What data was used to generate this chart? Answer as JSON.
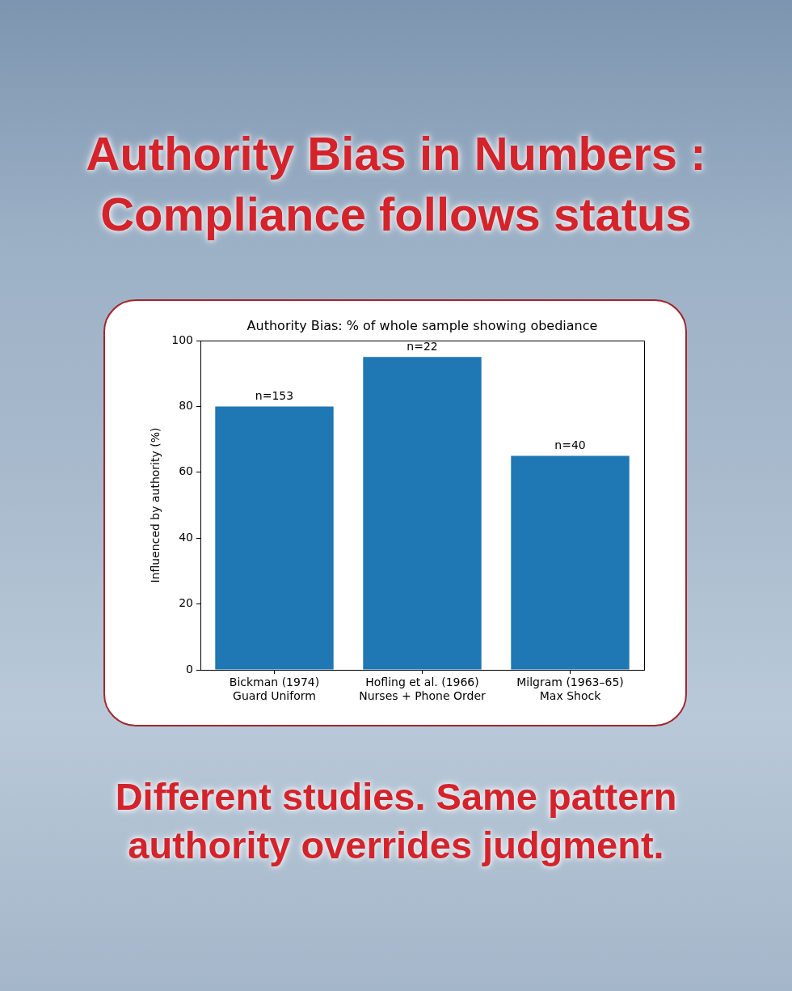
{
  "chart_data": {
    "type": "bar",
    "title": "Authority Bias in Numbers : Compliance follows status",
    "subtitle": "Authority Bias: % of whole sample showing obediance",
    "ylabel": "Influenced by authority (%)",
    "categories": [
      "Bickman (1974)\nGuard Uniform",
      "Hofling et al. (1966)\nNurses + Phone Order",
      "Milgram (1963–65)\nMax Shock"
    ],
    "values": [
      80,
      95,
      65
    ],
    "color": "#1f77b4",
    "ylim": [
      0,
      100
    ],
    "yticks": [
      0,
      20,
      40,
      60,
      80,
      100
    ],
    "grid": false,
    "legend": false,
    "annotations": [
      {
        "text": "n=153",
        "x": "Bickman (1974)\nGuard Uniform",
        "y": 80
      },
      {
        "text": "n=22",
        "x": "Hofling et al. (1966)\nNurses + Phone Order",
        "y": 95
      },
      {
        "text": "n=40",
        "x": "Milgram (1963–65)\nMax Shock",
        "y": 65
      },
      "Different studies. Same pattern authority overrides judgment."
    ]
  }
}
